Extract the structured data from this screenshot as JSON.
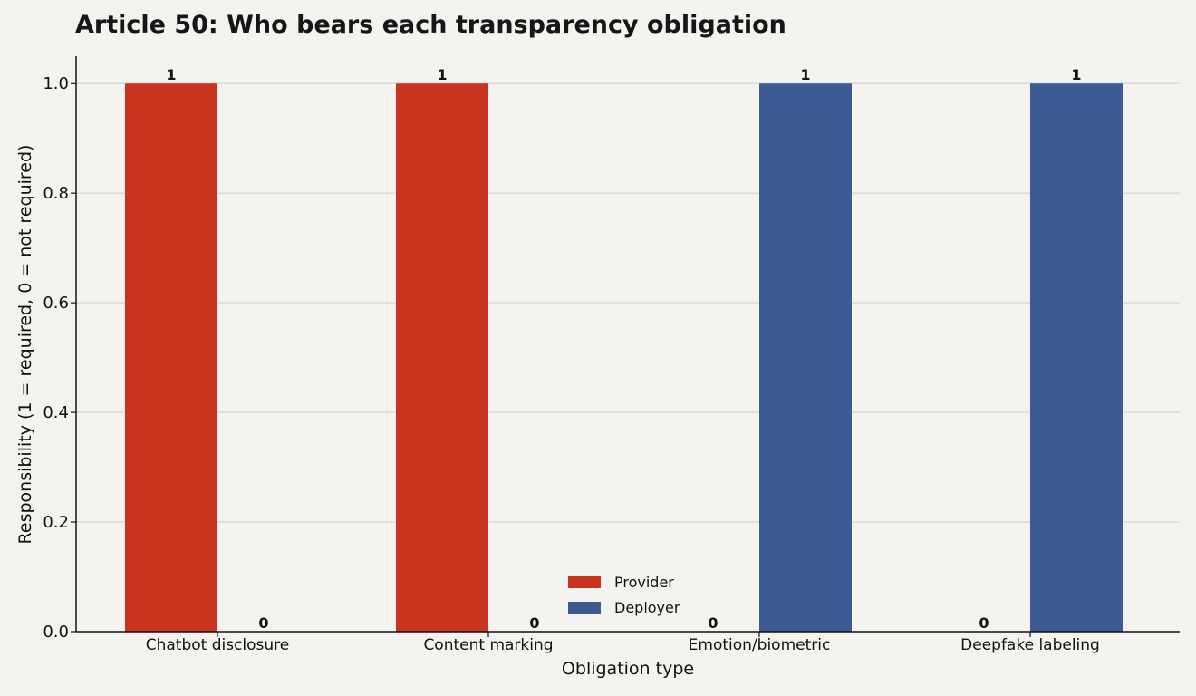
{
  "chart_data": {
    "type": "bar",
    "title": "Article 50: Who bears each transparency obligation",
    "xlabel": "Obligation type",
    "ylabel": "Responsibility (1 = required, 0 = not required)",
    "categories": [
      "Chatbot disclosure",
      "Content marking",
      "Emotion/biometric",
      "Deepfake labeling"
    ],
    "series": [
      {
        "name": "Provider",
        "values": [
          1,
          1,
          0,
          0
        ],
        "color": "#c93420",
        "labels": [
          "1",
          "1",
          "0",
          "0"
        ]
      },
      {
        "name": "Deployer",
        "values": [
          0,
          0,
          1,
          1
        ],
        "color": "#3c5a94",
        "labels": [
          "0",
          "0",
          "1",
          "1"
        ]
      }
    ],
    "ylim": [
      0,
      1.05
    ],
    "yticks": [
      "0.0",
      "0.2",
      "0.4",
      "0.6",
      "0.8",
      "1.0"
    ],
    "ytick_values": [
      0,
      0.2,
      0.4,
      0.6,
      0.8,
      1.0
    ],
    "grid": "horizontal",
    "legend_position": "lower-center"
  }
}
